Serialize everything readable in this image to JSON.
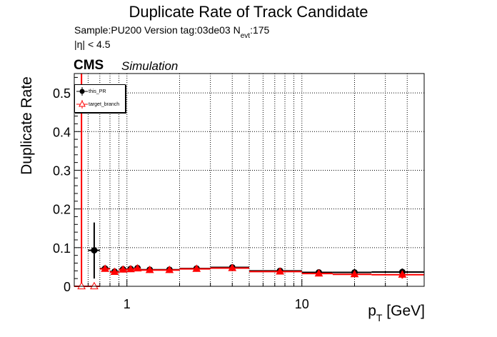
{
  "header": {
    "title": "Duplicate Rate of Track Candidate",
    "sample_line": "Sample:PU200   Version tag:03de03  N",
    "nevt_sub": "evt",
    "nevt_value": ":175",
    "eta_cut": "|η| < 4.5",
    "cms_label": "CMS",
    "simulation_label": "Simulation"
  },
  "colors": {
    "this_pr": "#000000",
    "target_branch": "#ff0000",
    "grid": "#000000"
  },
  "chart_data": {
    "type": "scatter",
    "title": "Duplicate Rate of Track Candidate",
    "xlabel": "p",
    "xlabel_sub": "T",
    "xlabel_unit": " [GeV]",
    "ylabel": "Duplicate Rate",
    "xscale": "log",
    "xlim": [
      0.5,
      50
    ],
    "ylim": [
      0,
      0.55
    ],
    "grid": true,
    "legend_position": "top-left",
    "x_ticks": [
      {
        "value": 1,
        "label": "1"
      },
      {
        "value": 10,
        "label": "10"
      }
    ],
    "y_ticks": [
      {
        "value": 0,
        "label": "0"
      },
      {
        "value": 0.1,
        "label": "0.1"
      },
      {
        "value": 0.2,
        "label": "0.2"
      },
      {
        "value": 0.3,
        "label": "0.3"
      },
      {
        "value": 0.4,
        "label": "0.4"
      },
      {
        "value": 0.5,
        "label": "0.5"
      }
    ],
    "series": [
      {
        "name": "this_PR",
        "marker": "circle",
        "points": [
          {
            "x": 0.65,
            "xlo": 0.6,
            "xhi": 0.7,
            "y": 0.093,
            "ylo": 0.02,
            "yhi": 0.165
          },
          {
            "x": 0.75,
            "xlo": 0.7,
            "xhi": 0.8,
            "y": 0.046,
            "ylo": 0.042,
            "yhi": 0.05
          },
          {
            "x": 0.85,
            "xlo": 0.8,
            "xhi": 0.9,
            "y": 0.038,
            "ylo": 0.035,
            "yhi": 0.041
          },
          {
            "x": 0.95,
            "xlo": 0.9,
            "xhi": 1.0,
            "y": 0.044,
            "ylo": 0.041,
            "yhi": 0.047
          },
          {
            "x": 1.05,
            "xlo": 1.0,
            "xhi": 1.1,
            "y": 0.045,
            "ylo": 0.042,
            "yhi": 0.048
          },
          {
            "x": 1.15,
            "xlo": 1.1,
            "xhi": 1.2,
            "y": 0.047,
            "ylo": 0.044,
            "yhi": 0.05
          },
          {
            "x": 1.35,
            "xlo": 1.2,
            "xhi": 1.5,
            "y": 0.043,
            "ylo": 0.041,
            "yhi": 0.045
          },
          {
            "x": 1.75,
            "xlo": 1.5,
            "xhi": 2.0,
            "y": 0.043,
            "ylo": 0.041,
            "yhi": 0.045
          },
          {
            "x": 2.5,
            "xlo": 2.0,
            "xhi": 3.0,
            "y": 0.046,
            "ylo": 0.044,
            "yhi": 0.048
          },
          {
            "x": 4.0,
            "xlo": 3.0,
            "xhi": 5.0,
            "y": 0.049,
            "ylo": 0.046,
            "yhi": 0.052
          },
          {
            "x": 7.5,
            "xlo": 5.0,
            "xhi": 10.0,
            "y": 0.04,
            "ylo": 0.036,
            "yhi": 0.044
          },
          {
            "x": 12.5,
            "xlo": 10.0,
            "xhi": 15.0,
            "y": 0.036,
            "ylo": 0.029,
            "yhi": 0.043
          },
          {
            "x": 20.0,
            "xlo": 15.0,
            "xhi": 25.0,
            "y": 0.036,
            "ylo": 0.029,
            "yhi": 0.043
          },
          {
            "x": 37.5,
            "xlo": 25.0,
            "xhi": 50.0,
            "y": 0.037,
            "ylo": 0.028,
            "yhi": 0.046
          }
        ]
      },
      {
        "name": "target_branch",
        "marker": "open-triangle",
        "points": [
          {
            "x": 0.55,
            "xlo": 0.5,
            "xhi": 0.6,
            "y": 0.0,
            "ylo": 0.0,
            "yhi": 0.55
          },
          {
            "x": 0.65,
            "xlo": 0.6,
            "xhi": 0.7,
            "y": 0.0,
            "ylo": 0.0,
            "yhi": 0.0
          },
          {
            "x": 0.75,
            "xlo": 0.7,
            "xhi": 0.8,
            "y": 0.045,
            "ylo": 0.041,
            "yhi": 0.049
          },
          {
            "x": 0.85,
            "xlo": 0.8,
            "xhi": 0.9,
            "y": 0.037,
            "ylo": 0.034,
            "yhi": 0.04
          },
          {
            "x": 0.95,
            "xlo": 0.9,
            "xhi": 1.0,
            "y": 0.043,
            "ylo": 0.04,
            "yhi": 0.046
          },
          {
            "x": 1.05,
            "xlo": 1.0,
            "xhi": 1.1,
            "y": 0.044,
            "ylo": 0.041,
            "yhi": 0.047
          },
          {
            "x": 1.15,
            "xlo": 1.1,
            "xhi": 1.2,
            "y": 0.046,
            "ylo": 0.043,
            "yhi": 0.049
          },
          {
            "x": 1.35,
            "xlo": 1.2,
            "xhi": 1.5,
            "y": 0.042,
            "ylo": 0.04,
            "yhi": 0.044
          },
          {
            "x": 1.75,
            "xlo": 1.5,
            "xhi": 2.0,
            "y": 0.042,
            "ylo": 0.04,
            "yhi": 0.044
          },
          {
            "x": 2.5,
            "xlo": 2.0,
            "xhi": 3.0,
            "y": 0.045,
            "ylo": 0.043,
            "yhi": 0.047
          },
          {
            "x": 4.0,
            "xlo": 3.0,
            "xhi": 5.0,
            "y": 0.047,
            "ylo": 0.044,
            "yhi": 0.05
          },
          {
            "x": 7.5,
            "xlo": 5.0,
            "xhi": 10.0,
            "y": 0.038,
            "ylo": 0.034,
            "yhi": 0.042
          },
          {
            "x": 12.5,
            "xlo": 10.0,
            "xhi": 15.0,
            "y": 0.033,
            "ylo": 0.026,
            "yhi": 0.04
          },
          {
            "x": 20.0,
            "xlo": 15.0,
            "xhi": 25.0,
            "y": 0.031,
            "ylo": 0.024,
            "yhi": 0.038
          },
          {
            "x": 37.5,
            "xlo": 25.0,
            "xhi": 50.0,
            "y": 0.03,
            "ylo": 0.02,
            "yhi": 0.04
          }
        ]
      }
    ]
  }
}
